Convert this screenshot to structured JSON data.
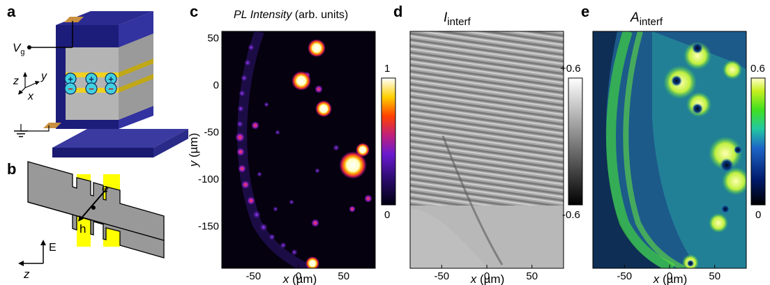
{
  "panels": {
    "a": {
      "letter": "a",
      "vg": "V",
      "vg_sub": "g",
      "ax_x": "x",
      "ax_y": "y",
      "ax_z": "z",
      "plus": "+",
      "minus": "−"
    },
    "b": {
      "letter": "b",
      "e": "e",
      "h": "h",
      "field": "E",
      "zlabel": "z"
    },
    "c": {
      "letter": "c",
      "title_italic": "PL Intensity",
      "title_rest": " (arb. units)",
      "cbar_top": "1",
      "cbar_bottom": "0"
    },
    "d": {
      "letter": "d",
      "title_main": "I",
      "title_sub": "interf",
      "cbar_top": "+0.6",
      "cbar_bottom": "-0.6"
    },
    "e": {
      "letter": "e",
      "title_main": "A",
      "title_sub": "interf",
      "cbar_top": "0.6",
      "cbar_bottom": "0"
    }
  },
  "axes": {
    "xlabel_var": "x",
    "xlabel_unit": " (µm)",
    "ylabel_var": "y",
    "ylabel_unit": " (µm)",
    "x_ticks": [
      "-50",
      "0",
      "50"
    ],
    "y_ticks": [
      "50",
      "0",
      "-50",
      "-100",
      "-150"
    ]
  },
  "chart_data": {
    "type": "heatmap",
    "x_range": [
      -85,
      85
    ],
    "y_range": [
      -195,
      57
    ],
    "x_ticks": [
      -50,
      0,
      50
    ],
    "y_ticks": [
      50,
      0,
      -50,
      -100,
      -150
    ],
    "colors": {
      "pl_map": [
        "#000010",
        "#2a0a6a",
        "#6a1ad0",
        "#c0207a",
        "#ff6000",
        "#ffd000",
        "#ffffff"
      ],
      "interf_map": [
        "#000000",
        "#808080",
        "#ffffff"
      ],
      "amp_map": [
        "#000000",
        "#001a6b",
        "#1e66c8",
        "#22c8a0",
        "#40e020",
        "#c8f020",
        "#ffff80"
      ]
    }
  }
}
